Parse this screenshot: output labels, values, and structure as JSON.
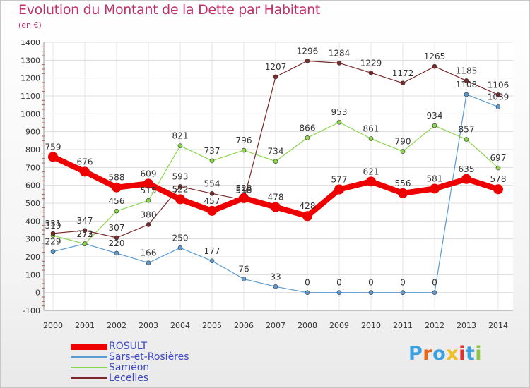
{
  "title": "Evolution du Montant de la Dette par Habitant",
  "subtitle": "(en €)",
  "logo": {
    "text": "Proxiti",
    "colors": [
      "#3aa0e0",
      "#e8661a",
      "#3aa0e0",
      "#f0c020",
      "#e03030",
      "#3aa0e0",
      "#8cc63f"
    ]
  },
  "chart_data": {
    "type": "line",
    "categories": [
      "2000",
      "2001",
      "2002",
      "2003",
      "2004",
      "2005",
      "2006",
      "2007",
      "2008",
      "2009",
      "2010",
      "2011",
      "2012",
      "2013",
      "2014"
    ],
    "ylim": [
      -100,
      1400
    ],
    "yticks": [
      -100,
      0,
      100,
      200,
      300,
      400,
      500,
      600,
      700,
      800,
      900,
      1000,
      1100,
      1200,
      1300,
      1400
    ],
    "grid": true,
    "legend_placement": "bottom-left",
    "series": [
      {
        "name": "ROSULT",
        "color": "#ee0000",
        "width": 8,
        "values": [
          759,
          676,
          588,
          609,
          522,
          457,
          528,
          478,
          428,
          577,
          621,
          556,
          581,
          635,
          578
        ],
        "labels": [
          "759",
          "676",
          "588",
          "609",
          "522",
          "457",
          "528",
          "478",
          "428",
          "577",
          "621",
          "556",
          "581",
          "635",
          "578"
        ]
      },
      {
        "name": "Sars-et-Rosières",
        "color": "#5c9bd1",
        "width": 1.2,
        "values": [
          229,
          273,
          220,
          166,
          250,
          177,
          76,
          33,
          0,
          0,
          0,
          0,
          0,
          1108,
          1039
        ],
        "labels": [
          "229",
          "273",
          "220",
          "166",
          "250",
          "177",
          "76",
          "33",
          "0",
          "0",
          "0",
          "0",
          "0",
          "1108",
          "1039"
        ]
      },
      {
        "name": "Saméon",
        "color": "#8bd64b",
        "width": 1.2,
        "values": [
          319,
          272,
          456,
          515,
          821,
          737,
          796,
          734,
          866,
          953,
          861,
          790,
          934,
          857,
          697
        ],
        "labels": [
          "319",
          "272",
          "456",
          "515",
          "821",
          "737",
          "796",
          "734",
          "866",
          "953",
          "861",
          "790",
          "934",
          "857",
          "697"
        ]
      },
      {
        "name": "Lecelles",
        "color": "#7a2a2a",
        "width": 1.2,
        "values": [
          331,
          347,
          307,
          380,
          593,
          554,
          518,
          1207,
          1296,
          1284,
          1229,
          1172,
          1265,
          1185,
          1106
        ],
        "labels": [
          "331",
          "347",
          "307",
          "380",
          "593",
          "554",
          "518",
          "1207",
          "1296",
          "1284",
          "1229",
          "1172",
          "1265",
          "1185",
          "1106"
        ]
      }
    ]
  }
}
